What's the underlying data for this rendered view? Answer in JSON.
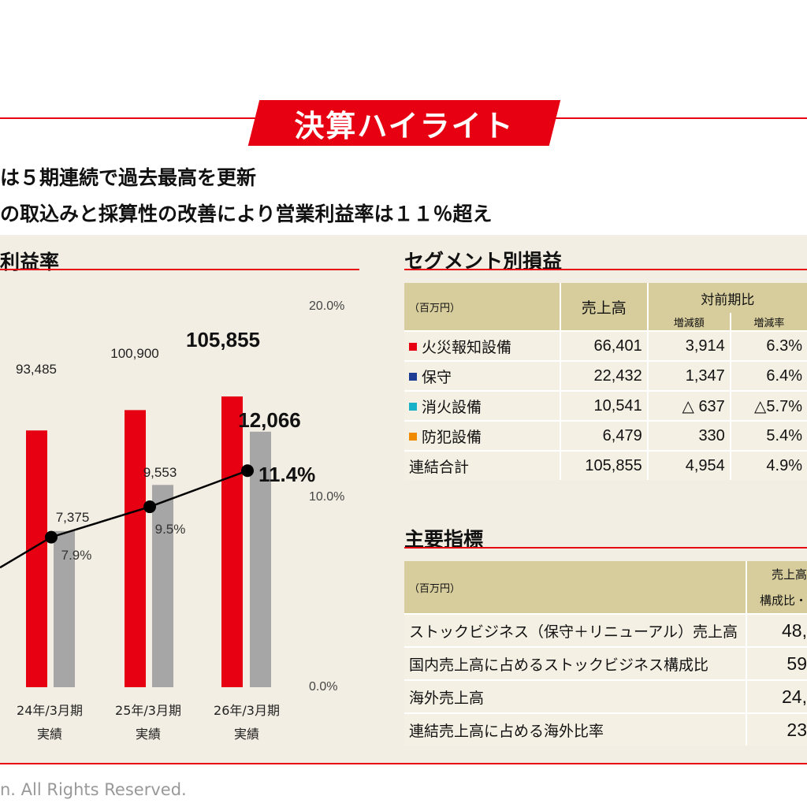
{
  "banner": {
    "title": "決算ハイライト"
  },
  "headlines": [
    "は５期連続で過去最高を更新",
    "の取込みと採算性の改善により営業利益率は１１％超え"
  ],
  "left_section": {
    "title": "利益率"
  },
  "right_section": {
    "title": "セグメント別損益"
  },
  "kpi_section": {
    "title": "主要指標"
  },
  "chart_data": {
    "type": "bar",
    "categories": [
      "24年/3月期\n実績",
      "25年/3月期\n実績",
      "26年/3月期\n実績"
    ],
    "x_labels": [
      [
        "24年/3月期",
        "実績"
      ],
      [
        "25年/3月期",
        "実績"
      ],
      [
        "26年/3月期",
        "実績"
      ]
    ],
    "series": [
      {
        "values": [
          93485,
          100900,
          105855
        ],
        "labels": [
          "93,485",
          "100,900",
          "105,855"
        ],
        "color": "#e60012"
      },
      {
        "values": [
          7375,
          9553,
          12066
        ],
        "labels": [
          "7,375",
          "9,553",
          "12,066"
        ],
        "color": "#a6a6a6"
      },
      {
        "values": [
          7.9,
          9.5,
          11.4
        ],
        "labels": [
          "7.9%",
          "9.5%",
          "11.4%"
        ],
        "color": "#000000",
        "type": "line",
        "axis": "right"
      }
    ],
    "y2_ticks": [
      "20.0%",
      "10.0%",
      "0.0%"
    ],
    "y2lim": [
      0,
      20
    ],
    "ylim": [
      0,
      125000
    ]
  },
  "segment_table": {
    "unit": "（百万円）",
    "col_sales": "売上高",
    "col_yoy": "対前期比",
    "col_diff": "増減額",
    "col_rate": "増減率",
    "rows": [
      {
        "name": "火災報知設備",
        "color": "#e60012",
        "sales": "66,401",
        "diff": "3,914",
        "rate": "6.3%"
      },
      {
        "name": "保守",
        "color": "#1f3c94",
        "sales": "22,432",
        "diff": "1,347",
        "rate": "6.4%"
      },
      {
        "name": "消火設備",
        "color": "#17b1c9",
        "sales": "10,541",
        "diff": "△ 637",
        "rate": "△5.7%"
      },
      {
        "name": "防犯設備",
        "color": "#f08a00",
        "sales": "6,479",
        "diff": "330",
        "rate": "5.4%"
      },
      {
        "name": "連結合計",
        "color": "",
        "sales": "105,855",
        "diff": "4,954",
        "rate": "4.9%"
      }
    ]
  },
  "kpi_table": {
    "unit": "（百万円）",
    "col_1": "売上高",
    "col_2": "構成比・",
    "rows": [
      {
        "name": "ストックビジネス（保守＋リニューアル）売上高",
        "value": "48,"
      },
      {
        "name": "国内売上高に占めるストックビジネス構成比",
        "value": "59"
      },
      {
        "name": "海外売上高",
        "value": "24,"
      },
      {
        "name": "連結売上高に占める海外比率",
        "value": "23"
      }
    ]
  },
  "footer": {
    "copyright": "n. All Rights Reserved."
  }
}
